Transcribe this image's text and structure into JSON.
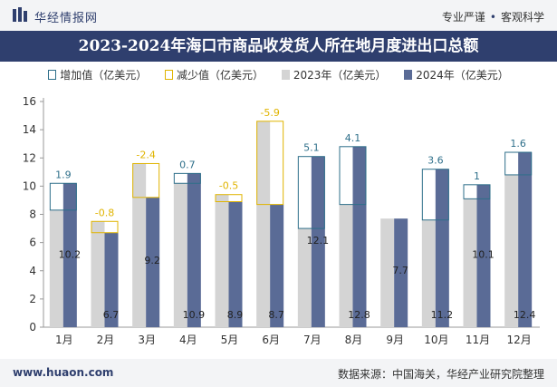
{
  "header": {
    "brand": "华经情报网",
    "slogan_left": "专业严谨",
    "slogan_sep": "•",
    "slogan_right": "客观科学"
  },
  "footer": {
    "url": "www.huaon.com",
    "source": "数据来源：中国海关，华经产业研究院整理"
  },
  "colors": {
    "navy": "#2f3f6e",
    "bar2023": "#d4d4d4",
    "bar2024": "#5a6b96",
    "increase": "#2e6f8a",
    "decrease": "#e0b400"
  },
  "legend": {
    "increase": "增加值（亿美元）",
    "decrease": "减少值（亿美元）",
    "y2023": "2023年（亿美元）",
    "y2024": "2024年（亿美元）"
  },
  "chart_data": {
    "type": "bar",
    "title": "2023-2024年海口市商品收发货人所在地月度进出口总额",
    "categories": [
      "1月",
      "2月",
      "3月",
      "4月",
      "5月",
      "6月",
      "7月",
      "8月",
      "9月",
      "10月",
      "11月",
      "12月"
    ],
    "series": [
      {
        "name": "2023年（亿美元）",
        "values": [
          8.3,
          7.5,
          11.6,
          10.2,
          9.4,
          14.6,
          7.0,
          8.7,
          7.7,
          7.6,
          9.1,
          10.8
        ]
      },
      {
        "name": "2024年（亿美元）",
        "values": [
          10.2,
          6.7,
          9.2,
          10.9,
          8.9,
          8.7,
          12.1,
          12.8,
          7.7,
          11.2,
          10.1,
          12.4
        ]
      }
    ],
    "change": {
      "increase_name": "增加值（亿美元）",
      "decrease_name": "减少值（亿美元）",
      "labels": [
        "1.9",
        "-0.8",
        "-2.4",
        "0.7",
        "-0.5",
        "-5.9",
        "5.1",
        "4.1",
        "",
        "3.6",
        "1",
        "1.6"
      ]
    },
    "value_labels_2024": [
      "10.2",
      "6.7",
      "9.2",
      "10.9",
      "8.9",
      "8.7",
      "12.1",
      "12.8",
      "7.7",
      "11.2",
      "10.1",
      "12.4"
    ],
    "ylim": [
      0,
      16
    ],
    "yticks": [
      0,
      2,
      4,
      6,
      8,
      10,
      12,
      14,
      16
    ],
    "xlabel": "",
    "ylabel": "",
    "grid": false,
    "legend_position": "top"
  }
}
